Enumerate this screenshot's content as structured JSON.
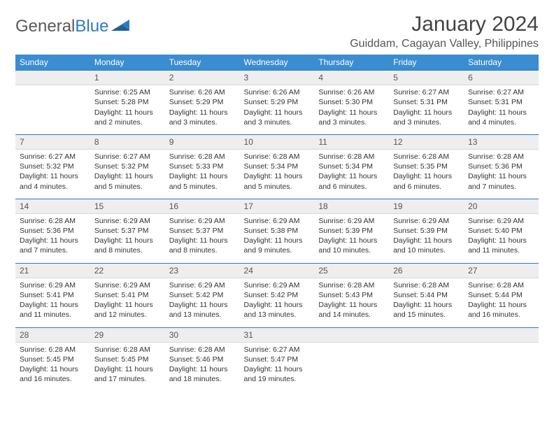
{
  "brand": {
    "word1": "General",
    "word2": "Blue"
  },
  "title": "January 2024",
  "location": "Guiddam, Cagayan Valley, Philippines",
  "weekdays": [
    "Sunday",
    "Monday",
    "Tuesday",
    "Wednesday",
    "Thursday",
    "Friday",
    "Saturday"
  ],
  "colors": {
    "header_bg": "#3a8dd0",
    "header_text": "#ffffff",
    "daynum_bg": "#eeeeee",
    "row_divider": "#2f7bbf",
    "text": "#333333",
    "brand_blue": "#2f7bbf",
    "brand_gray": "#5a5a5a"
  },
  "typography": {
    "title_fontsize": 30,
    "location_fontsize": 16,
    "weekday_fontsize": 12,
    "daynum_fontsize": 12,
    "cell_fontsize": 10.5
  },
  "layout": {
    "columns": 7,
    "rows": 5
  },
  "weeks": [
    [
      null,
      {
        "n": "1",
        "sr": "Sunrise: 6:25 AM",
        "ss": "Sunset: 5:28 PM",
        "dl": "Daylight: 11 hours and 2 minutes."
      },
      {
        "n": "2",
        "sr": "Sunrise: 6:26 AM",
        "ss": "Sunset: 5:29 PM",
        "dl": "Daylight: 11 hours and 3 minutes."
      },
      {
        "n": "3",
        "sr": "Sunrise: 6:26 AM",
        "ss": "Sunset: 5:29 PM",
        "dl": "Daylight: 11 hours and 3 minutes."
      },
      {
        "n": "4",
        "sr": "Sunrise: 6:26 AM",
        "ss": "Sunset: 5:30 PM",
        "dl": "Daylight: 11 hours and 3 minutes."
      },
      {
        "n": "5",
        "sr": "Sunrise: 6:27 AM",
        "ss": "Sunset: 5:31 PM",
        "dl": "Daylight: 11 hours and 3 minutes."
      },
      {
        "n": "6",
        "sr": "Sunrise: 6:27 AM",
        "ss": "Sunset: 5:31 PM",
        "dl": "Daylight: 11 hours and 4 minutes."
      }
    ],
    [
      {
        "n": "7",
        "sr": "Sunrise: 6:27 AM",
        "ss": "Sunset: 5:32 PM",
        "dl": "Daylight: 11 hours and 4 minutes."
      },
      {
        "n": "8",
        "sr": "Sunrise: 6:27 AM",
        "ss": "Sunset: 5:32 PM",
        "dl": "Daylight: 11 hours and 5 minutes."
      },
      {
        "n": "9",
        "sr": "Sunrise: 6:28 AM",
        "ss": "Sunset: 5:33 PM",
        "dl": "Daylight: 11 hours and 5 minutes."
      },
      {
        "n": "10",
        "sr": "Sunrise: 6:28 AM",
        "ss": "Sunset: 5:34 PM",
        "dl": "Daylight: 11 hours and 5 minutes."
      },
      {
        "n": "11",
        "sr": "Sunrise: 6:28 AM",
        "ss": "Sunset: 5:34 PM",
        "dl": "Daylight: 11 hours and 6 minutes."
      },
      {
        "n": "12",
        "sr": "Sunrise: 6:28 AM",
        "ss": "Sunset: 5:35 PM",
        "dl": "Daylight: 11 hours and 6 minutes."
      },
      {
        "n": "13",
        "sr": "Sunrise: 6:28 AM",
        "ss": "Sunset: 5:36 PM",
        "dl": "Daylight: 11 hours and 7 minutes."
      }
    ],
    [
      {
        "n": "14",
        "sr": "Sunrise: 6:28 AM",
        "ss": "Sunset: 5:36 PM",
        "dl": "Daylight: 11 hours and 7 minutes."
      },
      {
        "n": "15",
        "sr": "Sunrise: 6:29 AM",
        "ss": "Sunset: 5:37 PM",
        "dl": "Daylight: 11 hours and 8 minutes."
      },
      {
        "n": "16",
        "sr": "Sunrise: 6:29 AM",
        "ss": "Sunset: 5:37 PM",
        "dl": "Daylight: 11 hours and 8 minutes."
      },
      {
        "n": "17",
        "sr": "Sunrise: 6:29 AM",
        "ss": "Sunset: 5:38 PM",
        "dl": "Daylight: 11 hours and 9 minutes."
      },
      {
        "n": "18",
        "sr": "Sunrise: 6:29 AM",
        "ss": "Sunset: 5:39 PM",
        "dl": "Daylight: 11 hours and 10 minutes."
      },
      {
        "n": "19",
        "sr": "Sunrise: 6:29 AM",
        "ss": "Sunset: 5:39 PM",
        "dl": "Daylight: 11 hours and 10 minutes."
      },
      {
        "n": "20",
        "sr": "Sunrise: 6:29 AM",
        "ss": "Sunset: 5:40 PM",
        "dl": "Daylight: 11 hours and 11 minutes."
      }
    ],
    [
      {
        "n": "21",
        "sr": "Sunrise: 6:29 AM",
        "ss": "Sunset: 5:41 PM",
        "dl": "Daylight: 11 hours and 11 minutes."
      },
      {
        "n": "22",
        "sr": "Sunrise: 6:29 AM",
        "ss": "Sunset: 5:41 PM",
        "dl": "Daylight: 11 hours and 12 minutes."
      },
      {
        "n": "23",
        "sr": "Sunrise: 6:29 AM",
        "ss": "Sunset: 5:42 PM",
        "dl": "Daylight: 11 hours and 13 minutes."
      },
      {
        "n": "24",
        "sr": "Sunrise: 6:29 AM",
        "ss": "Sunset: 5:42 PM",
        "dl": "Daylight: 11 hours and 13 minutes."
      },
      {
        "n": "25",
        "sr": "Sunrise: 6:28 AM",
        "ss": "Sunset: 5:43 PM",
        "dl": "Daylight: 11 hours and 14 minutes."
      },
      {
        "n": "26",
        "sr": "Sunrise: 6:28 AM",
        "ss": "Sunset: 5:44 PM",
        "dl": "Daylight: 11 hours and 15 minutes."
      },
      {
        "n": "27",
        "sr": "Sunrise: 6:28 AM",
        "ss": "Sunset: 5:44 PM",
        "dl": "Daylight: 11 hours and 16 minutes."
      }
    ],
    [
      {
        "n": "28",
        "sr": "Sunrise: 6:28 AM",
        "ss": "Sunset: 5:45 PM",
        "dl": "Daylight: 11 hours and 16 minutes."
      },
      {
        "n": "29",
        "sr": "Sunrise: 6:28 AM",
        "ss": "Sunset: 5:45 PM",
        "dl": "Daylight: 11 hours and 17 minutes."
      },
      {
        "n": "30",
        "sr": "Sunrise: 6:28 AM",
        "ss": "Sunset: 5:46 PM",
        "dl": "Daylight: 11 hours and 18 minutes."
      },
      {
        "n": "31",
        "sr": "Sunrise: 6:27 AM",
        "ss": "Sunset: 5:47 PM",
        "dl": "Daylight: 11 hours and 19 minutes."
      },
      null,
      null,
      null
    ]
  ]
}
